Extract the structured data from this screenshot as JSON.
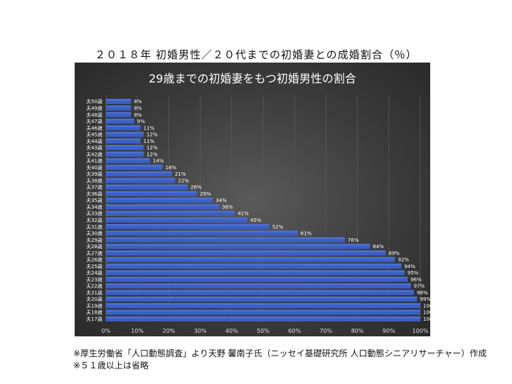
{
  "page": {
    "heading": "２０１８年 初婚男性／２０代までの初婚妻との成婚割合（％）",
    "footnotes": [
      "※厚生労働省「人口動態調査」より天野 馨南子氏（ニッセイ基礎研究所 人口動態シニアリサーチャー）作成",
      "※５１歳以上は省略"
    ]
  },
  "colors": {
    "bar": "#3b5fc4",
    "bar_highlight": "#5b80e0",
    "panel_background": "#404040",
    "text": "#ffffff",
    "grid": "#5a5a5a"
  },
  "chart_data": {
    "type": "bar",
    "orientation": "horizontal",
    "title": "29歳までの初婚妻をもつ初婚男性の割合",
    "categories": [
      "夫50歳",
      "夫49歳",
      "夫48歳",
      "夫47歳",
      "夫46歳",
      "夫45歳",
      "夫44歳",
      "夫43歳",
      "夫42歳",
      "夫41歳",
      "夫40歳",
      "夫39歳",
      "夫38歳",
      "夫37歳",
      "夫36歳",
      "夫35歳",
      "夫34歳",
      "夫33歳",
      "夫32歳",
      "夫31歳",
      "夫30歳",
      "夫29歳",
      "夫28歳",
      "夫27歳",
      "夫26歳",
      "夫25歳",
      "夫24歳",
      "夫23歳",
      "夫22歳",
      "夫21歳",
      "夫20歳",
      "夫19歳",
      "夫18歳",
      "夫17歳"
    ],
    "values": [
      8,
      8,
      8,
      9,
      11,
      12,
      11,
      12,
      12,
      14,
      18,
      21,
      22,
      26,
      29,
      34,
      36,
      41,
      45,
      52,
      61,
      76,
      84,
      89,
      92,
      94,
      95,
      96,
      97,
      98,
      99,
      100,
      100,
      100
    ],
    "data_labels": [
      "8%",
      "8%",
      "8%",
      "9%",
      "11%",
      "12%",
      "11%",
      "12%",
      "12%",
      "14%",
      "18%",
      "21%",
      "22%",
      "26%",
      "29%",
      "34%",
      "36%",
      "41%",
      "45%",
      "52%",
      "61%",
      "76%",
      "84%",
      "89%",
      "92%",
      "94%",
      "95%",
      "96%",
      "97%",
      "98%",
      "99%",
      "100%",
      "100%",
      "100%"
    ],
    "xlim": [
      0,
      100
    ],
    "x_ticks": [
      "0%",
      "10%",
      "20%",
      "30%",
      "40%",
      "50%",
      "60%",
      "70%",
      "80%",
      "90%",
      "100%"
    ],
    "grid": "vertical",
    "legend": "none"
  }
}
